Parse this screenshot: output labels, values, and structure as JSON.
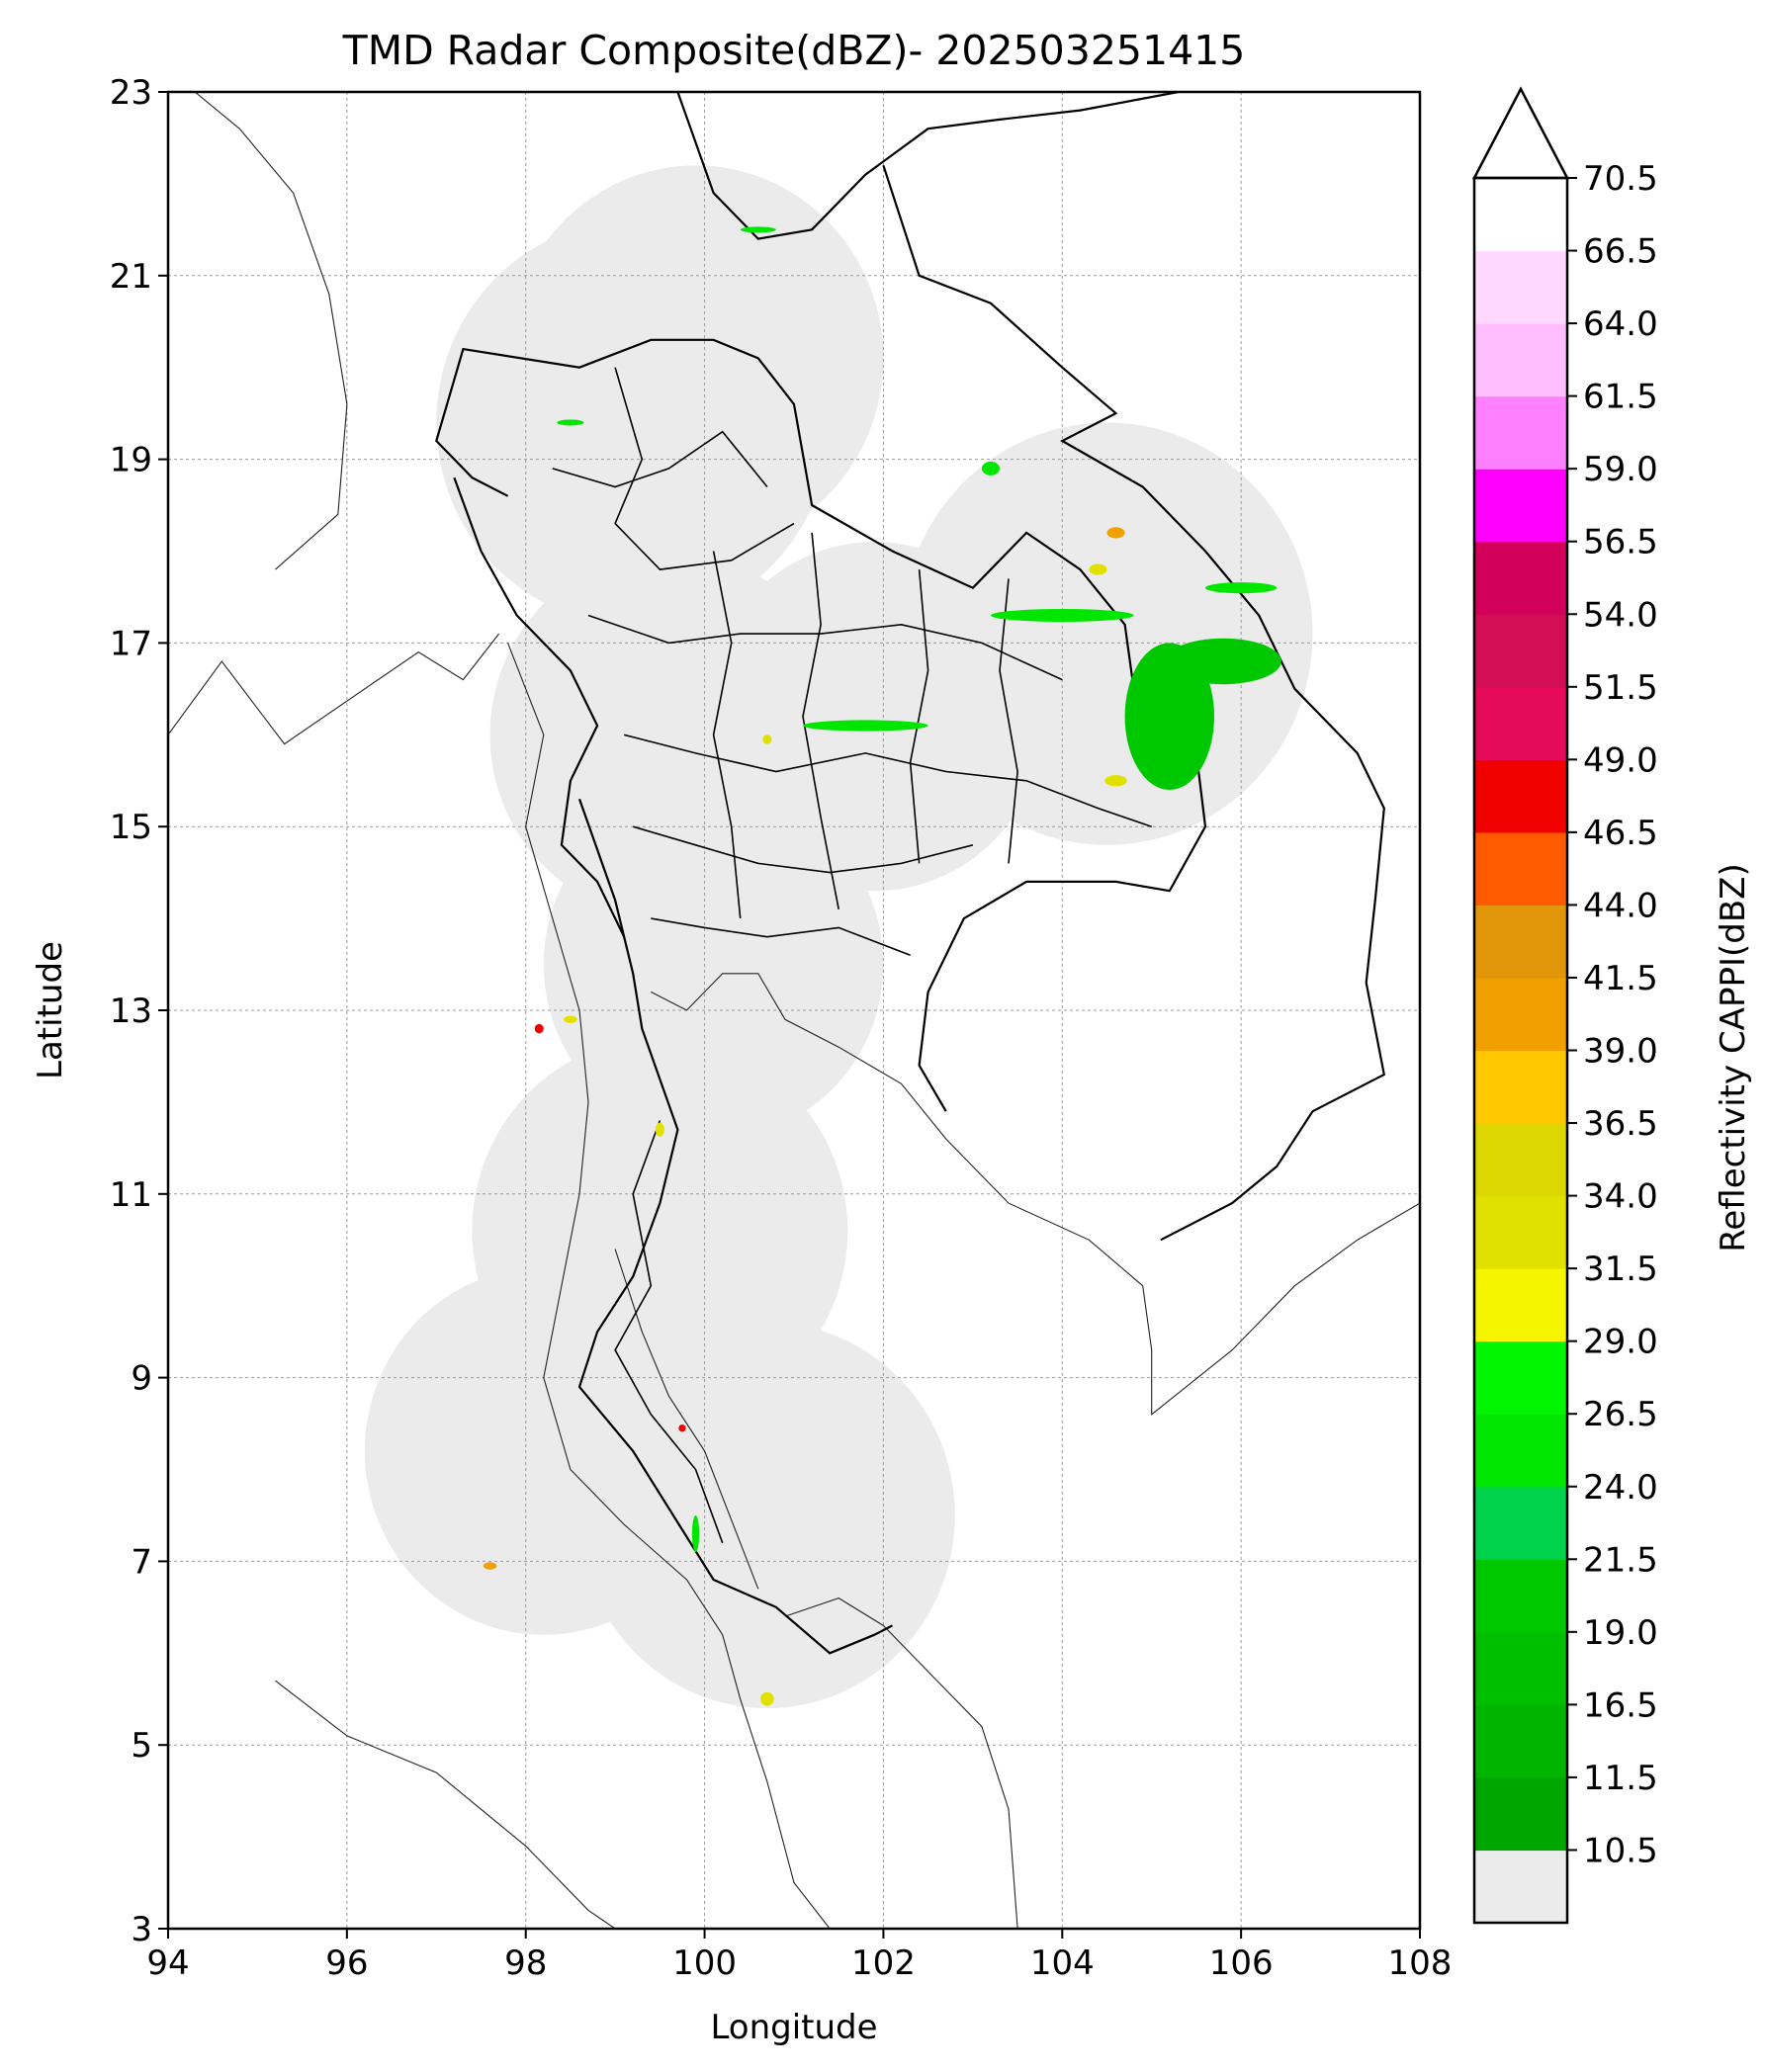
{
  "title": "TMD Radar Composite(dBZ)- 202503251415",
  "x_axis": {
    "label": "Longitude",
    "range": [
      94,
      108
    ],
    "ticks": [
      94,
      96,
      98,
      100,
      102,
      104,
      106,
      108
    ]
  },
  "y_axis": {
    "label": "Latitude",
    "range": [
      3,
      23
    ],
    "ticks": [
      3,
      5,
      7,
      9,
      11,
      13,
      15,
      17,
      19,
      21,
      23
    ]
  },
  "colorbar": {
    "label": "Reflectivity CAPPI(dBZ)",
    "tick_labels": [
      "10.5",
      "11.5",
      "16.5",
      "19.0",
      "21.5",
      "24.0",
      "26.5",
      "29.0",
      "31.5",
      "34.0",
      "36.5",
      "39.0",
      "41.5",
      "44.0",
      "46.5",
      "49.0",
      "51.5",
      "54.0",
      "56.5",
      "59.0",
      "61.5",
      "64.0",
      "66.5",
      "70.5"
    ],
    "colors": [
      "#ebebeb",
      "#00a600",
      "#00b400",
      "#00be00",
      "#00c800",
      "#00d24b",
      "#00e600",
      "#00f500",
      "#f5f500",
      "#e1e100",
      "#dcd700",
      "#ffc800",
      "#f0a000",
      "#e1960a",
      "#ff5a00",
      "#f00000",
      "#e60a5a",
      "#d20f55",
      "#d2005a",
      "#ff00ff",
      "#ff80ff",
      "#ffbfff",
      "#ffd7ff",
      "#ffffff"
    ],
    "extend": "max"
  },
  "grid": true,
  "coverage_color": "#ebebeb",
  "echo_colors": {
    "light": "#00c800",
    "medium": "#00e600",
    "yellow": "#e1e100",
    "orange": "#f0a000",
    "red": "#f00000"
  },
  "radar_sites": [
    {
      "lon": 99.9,
      "lat": 20.1,
      "range_deg": 2.1
    },
    {
      "lon": 99.2,
      "lat": 19.4,
      "range_deg": 2.2
    },
    {
      "lon": 104.5,
      "lat": 17.1,
      "range_deg": 2.3
    },
    {
      "lon": 99.6,
      "lat": 16.0,
      "range_deg": 2.0
    },
    {
      "lon": 101.9,
      "lat": 16.2,
      "range_deg": 1.9
    },
    {
      "lon": 100.1,
      "lat": 13.5,
      "range_deg": 1.9
    },
    {
      "lon": 99.5,
      "lat": 10.6,
      "range_deg": 2.1
    },
    {
      "lon": 98.2,
      "lat": 8.2,
      "range_deg": 2.0
    },
    {
      "lon": 100.7,
      "lat": 7.5,
      "range_deg": 2.1
    }
  ],
  "echoes": [
    {
      "lon": 105.2,
      "lat": 16.2,
      "w": 1.0,
      "h": 1.6,
      "color": "light"
    },
    {
      "lon": 105.8,
      "lat": 16.8,
      "w": 1.3,
      "h": 0.5,
      "color": "light"
    },
    {
      "lon": 106.0,
      "lat": 17.6,
      "w": 0.8,
      "h": 0.12,
      "color": "medium"
    },
    {
      "lon": 104.0,
      "lat": 17.3,
      "w": 1.6,
      "h": 0.14,
      "color": "medium"
    },
    {
      "lon": 101.8,
      "lat": 16.1,
      "w": 1.4,
      "h": 0.12,
      "color": "medium"
    },
    {
      "lon": 104.4,
      "lat": 17.8,
      "w": 0.2,
      "h": 0.12,
      "color": "yellow"
    },
    {
      "lon": 103.2,
      "lat": 18.9,
      "w": 0.2,
      "h": 0.15,
      "color": "medium"
    },
    {
      "lon": 104.6,
      "lat": 18.2,
      "w": 0.2,
      "h": 0.12,
      "color": "orange"
    },
    {
      "lon": 100.7,
      "lat": 15.95,
      "w": 0.1,
      "h": 0.1,
      "color": "yellow"
    },
    {
      "lon": 104.6,
      "lat": 15.5,
      "w": 0.25,
      "h": 0.12,
      "color": "yellow"
    },
    {
      "lon": 98.15,
      "lat": 12.8,
      "w": 0.1,
      "h": 0.1,
      "color": "red"
    },
    {
      "lon": 98.5,
      "lat": 12.9,
      "w": 0.15,
      "h": 0.08,
      "color": "yellow"
    },
    {
      "lon": 99.5,
      "lat": 11.7,
      "w": 0.1,
      "h": 0.15,
      "color": "yellow"
    },
    {
      "lon": 99.75,
      "lat": 8.45,
      "w": 0.08,
      "h": 0.08,
      "color": "red"
    },
    {
      "lon": 99.9,
      "lat": 7.3,
      "w": 0.08,
      "h": 0.4,
      "color": "medium"
    },
    {
      "lon": 97.6,
      "lat": 6.95,
      "w": 0.15,
      "h": 0.08,
      "color": "orange"
    },
    {
      "lon": 100.7,
      "lat": 5.5,
      "w": 0.15,
      "h": 0.15,
      "color": "yellow"
    },
    {
      "lon": 98.5,
      "lat": 19.4,
      "w": 0.3,
      "h": 0.05,
      "color": "medium"
    },
    {
      "lon": 100.6,
      "lat": 21.5,
      "w": 0.4,
      "h": 0.05,
      "color": "medium"
    }
  ],
  "coastlines": [
    [
      [
        95.2,
        17.8
      ],
      [
        95.9,
        18.4
      ],
      [
        96.0,
        19.6
      ],
      [
        95.8,
        20.8
      ],
      [
        95.4,
        21.9
      ],
      [
        94.8,
        22.6
      ],
      [
        94.3,
        23.0
      ]
    ],
    [
      [
        97.8,
        17.0
      ],
      [
        98.2,
        16.0
      ],
      [
        98.0,
        15.0
      ],
      [
        98.3,
        14.0
      ],
      [
        98.6,
        13.0
      ],
      [
        98.7,
        12.0
      ],
      [
        98.6,
        11.0
      ],
      [
        98.4,
        10.0
      ],
      [
        98.2,
        9.0
      ],
      [
        98.5,
        8.0
      ],
      [
        99.1,
        7.4
      ],
      [
        99.8,
        6.8
      ],
      [
        100.2,
        6.2
      ],
      [
        100.4,
        5.5
      ],
      [
        100.7,
        4.6
      ],
      [
        101.0,
        3.5
      ],
      [
        101.4,
        3.0
      ]
    ],
    [
      [
        94.0,
        16.0
      ],
      [
        94.6,
        16.8
      ],
      [
        95.3,
        15.9
      ],
      [
        96.2,
        16.5
      ],
      [
        96.8,
        16.9
      ],
      [
        97.3,
        16.6
      ],
      [
        97.7,
        17.1
      ]
    ],
    [
      [
        99.4,
        13.2
      ],
      [
        99.8,
        13.0
      ],
      [
        100.2,
        13.4
      ],
      [
        100.6,
        13.4
      ],
      [
        100.9,
        12.9
      ],
      [
        101.5,
        12.6
      ],
      [
        102.2,
        12.2
      ],
      [
        102.7,
        11.6
      ],
      [
        103.4,
        10.9
      ],
      [
        104.3,
        10.5
      ],
      [
        104.9,
        10.0
      ],
      [
        105.0,
        9.3
      ],
      [
        105.0,
        8.6
      ],
      [
        105.9,
        9.3
      ],
      [
        106.6,
        10.0
      ],
      [
        107.3,
        10.5
      ],
      [
        108.0,
        10.9
      ]
    ],
    [
      [
        95.2,
        5.7
      ],
      [
        96.0,
        5.1
      ],
      [
        97.0,
        4.7
      ],
      [
        98.0,
        3.9
      ],
      [
        98.7,
        3.2
      ],
      [
        99.0,
        3.0
      ]
    ],
    [
      [
        100.9,
        6.4
      ],
      [
        101.5,
        6.6
      ],
      [
        102.0,
        6.3
      ],
      [
        102.6,
        5.7
      ],
      [
        103.1,
        5.2
      ],
      [
        103.4,
        4.3
      ],
      [
        103.5,
        3.0
      ]
    ],
    [
      [
        99.0,
        10.4
      ],
      [
        99.3,
        9.5
      ],
      [
        99.6,
        8.8
      ],
      [
        100.0,
        8.2
      ],
      [
        100.4,
        7.2
      ],
      [
        100.6,
        6.7
      ]
    ]
  ],
  "borders": [
    [
      [
        99.7,
        23.0
      ],
      [
        100.1,
        21.9
      ],
      [
        100.6,
        21.4
      ],
      [
        101.2,
        21.5
      ],
      [
        101.8,
        22.1
      ],
      [
        102.5,
        22.6
      ],
      [
        103.3,
        22.7
      ],
      [
        104.2,
        22.8
      ],
      [
        105.3,
        23.0
      ]
    ],
    [
      [
        102.0,
        22.2
      ],
      [
        102.4,
        21.0
      ],
      [
        103.2,
        20.7
      ],
      [
        104.0,
        20.0
      ],
      [
        104.6,
        19.5
      ],
      [
        104.0,
        19.2
      ],
      [
        104.9,
        18.7
      ],
      [
        105.6,
        18.0
      ],
      [
        106.2,
        17.3
      ],
      [
        106.6,
        16.5
      ],
      [
        107.3,
        15.8
      ],
      [
        107.6,
        15.2
      ],
      [
        107.5,
        14.2
      ],
      [
        107.4,
        13.3
      ],
      [
        107.6,
        12.3
      ],
      [
        106.8,
        11.9
      ],
      [
        106.4,
        11.3
      ],
      [
        105.9,
        10.9
      ],
      [
        105.1,
        10.5
      ]
    ],
    [
      [
        97.8,
        18.6
      ],
      [
        97.4,
        18.8
      ],
      [
        97.0,
        19.2
      ],
      [
        97.3,
        20.2
      ],
      [
        98.6,
        20.0
      ],
      [
        99.4,
        20.3
      ],
      [
        100.1,
        20.3
      ],
      [
        100.6,
        20.1
      ],
      [
        101.0,
        19.6
      ],
      [
        101.2,
        18.5
      ],
      [
        102.1,
        18.0
      ],
      [
        103.0,
        17.6
      ],
      [
        103.6,
        18.2
      ],
      [
        104.2,
        17.8
      ],
      [
        104.7,
        17.2
      ],
      [
        104.8,
        16.5
      ],
      [
        105.5,
        15.8
      ],
      [
        105.6,
        15.0
      ],
      [
        105.2,
        14.3
      ],
      [
        104.6,
        14.4
      ],
      [
        103.6,
        14.4
      ],
      [
        102.9,
        14.0
      ],
      [
        102.5,
        13.2
      ],
      [
        102.4,
        12.4
      ],
      [
        102.7,
        11.9
      ]
    ],
    [
      [
        98.6,
        15.3
      ],
      [
        99.0,
        14.2
      ],
      [
        99.2,
        13.4
      ],
      [
        99.3,
        12.8
      ],
      [
        99.7,
        11.7
      ],
      [
        99.5,
        10.9
      ],
      [
        99.2,
        10.1
      ],
      [
        98.8,
        9.5
      ],
      [
        98.6,
        8.9
      ],
      [
        99.2,
        8.2
      ],
      [
        100.1,
        6.8
      ],
      [
        100.8,
        6.5
      ],
      [
        101.4,
        6.0
      ],
      [
        101.9,
        6.2
      ],
      [
        102.1,
        6.3
      ]
    ],
    [
      [
        97.2,
        18.8
      ],
      [
        97.5,
        18.0
      ],
      [
        97.9,
        17.3
      ],
      [
        98.5,
        16.7
      ],
      [
        98.8,
        16.1
      ],
      [
        98.5,
        15.5
      ],
      [
        98.4,
        14.8
      ],
      [
        98.8,
        14.4
      ],
      [
        99.1,
        13.8
      ]
    ]
  ],
  "provinces": [
    [
      [
        99.0,
        20.0
      ],
      [
        99.3,
        19.0
      ],
      [
        99.0,
        18.3
      ],
      [
        99.5,
        17.8
      ],
      [
        100.3,
        17.9
      ],
      [
        101.0,
        18.3
      ]
    ],
    [
      [
        98.3,
        18.9
      ],
      [
        99.0,
        18.7
      ],
      [
        99.6,
        18.9
      ],
      [
        100.2,
        19.3
      ],
      [
        100.7,
        18.7
      ]
    ],
    [
      [
        98.7,
        17.3
      ],
      [
        99.6,
        17.0
      ],
      [
        100.4,
        17.1
      ],
      [
        101.3,
        17.1
      ],
      [
        102.2,
        17.2
      ],
      [
        103.1,
        17.0
      ],
      [
        104.0,
        16.6
      ]
    ],
    [
      [
        99.1,
        16.0
      ],
      [
        99.9,
        15.8
      ],
      [
        100.8,
        15.6
      ],
      [
        101.8,
        15.8
      ],
      [
        102.7,
        15.6
      ],
      [
        103.6,
        15.5
      ],
      [
        104.4,
        15.2
      ],
      [
        105.0,
        15.0
      ]
    ],
    [
      [
        99.2,
        15.0
      ],
      [
        99.9,
        14.8
      ],
      [
        100.6,
        14.6
      ],
      [
        101.4,
        14.5
      ],
      [
        102.2,
        14.6
      ],
      [
        103.0,
        14.8
      ]
    ],
    [
      [
        99.4,
        14.0
      ],
      [
        100.0,
        13.9
      ],
      [
        100.7,
        13.8
      ],
      [
        101.5,
        13.9
      ],
      [
        102.3,
        13.6
      ]
    ],
    [
      [
        100.1,
        18.0
      ],
      [
        100.3,
        17.0
      ],
      [
        100.1,
        16.0
      ],
      [
        100.3,
        15.0
      ],
      [
        100.4,
        14.0
      ]
    ],
    [
      [
        101.2,
        18.2
      ],
      [
        101.3,
        17.2
      ],
      [
        101.1,
        16.2
      ],
      [
        101.3,
        15.1
      ],
      [
        101.5,
        14.1
      ]
    ],
    [
      [
        102.4,
        17.8
      ],
      [
        102.5,
        16.7
      ],
      [
        102.3,
        15.7
      ],
      [
        102.4,
        14.6
      ]
    ],
    [
      [
        103.4,
        17.7
      ],
      [
        103.3,
        16.7
      ],
      [
        103.5,
        15.6
      ],
      [
        103.4,
        14.6
      ]
    ],
    [
      [
        99.5,
        11.8
      ],
      [
        99.2,
        11.0
      ],
      [
        99.4,
        10.0
      ],
      [
        99.0,
        9.3
      ],
      [
        99.4,
        8.6
      ],
      [
        99.9,
        8.0
      ],
      [
        100.2,
        7.2
      ]
    ]
  ]
}
